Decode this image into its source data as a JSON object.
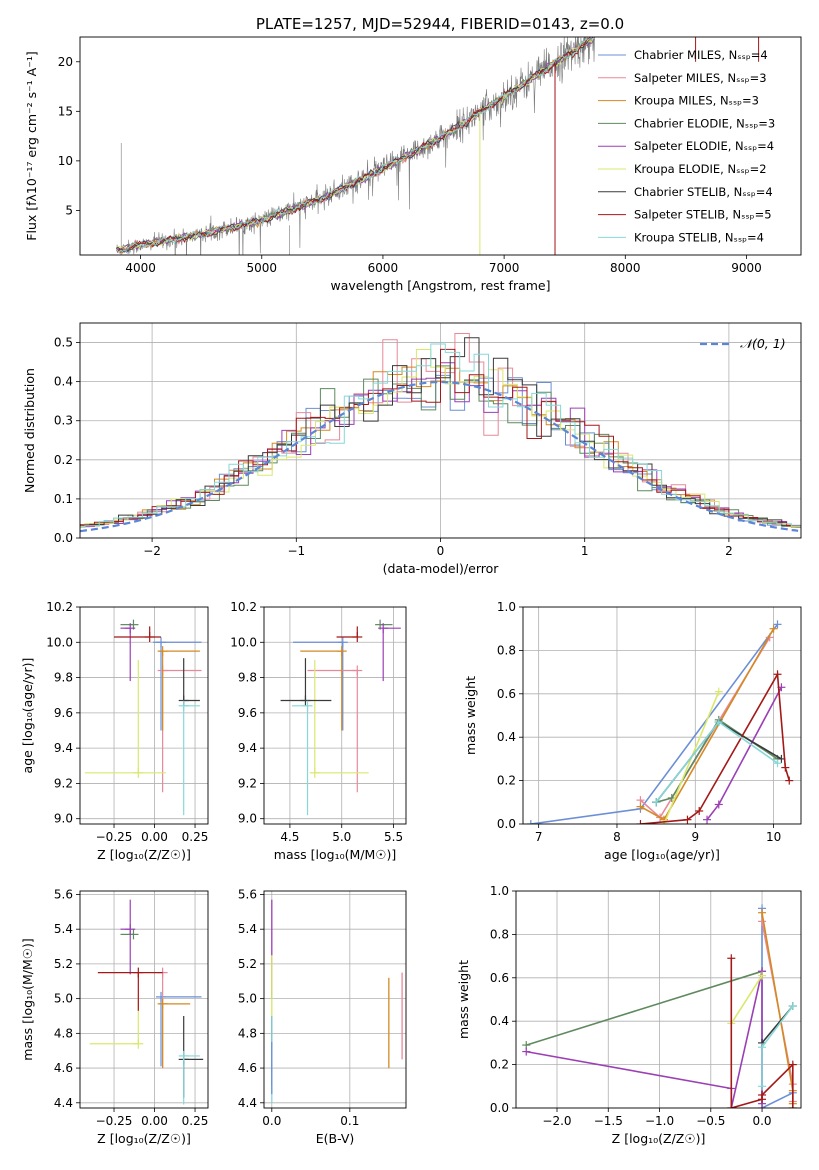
{
  "figure": {
    "title": "PLATE=1257, MJD=52944, FIBERID=0143, z=0.0"
  },
  "colors": {
    "Chabrier MILES": "#6b8fd6",
    "Salpeter MILES": "#e8899a",
    "Kroupa MILES": "#d48a22",
    "Chabrier ELODIE": "#5f8a5f",
    "Salpeter ELODIE": "#9b3fb5",
    "Kroupa ELODIE": "#d9e86b",
    "Chabrier STELIB": "#3a3a3a",
    "Salpeter STELIB": "#a51818",
    "Kroupa STELIB": "#86d8d8",
    "data": "#7a7a7a",
    "normal": "#5b86d8"
  },
  "chart_data": [
    {
      "id": "spectrum",
      "type": "line",
      "title": "PLATE=1257, MJD=52944, FIBERID=0143, z=0.0",
      "xlabel": "wavelength [Angstrom, rest frame]",
      "ylabel": "Flux [fλ10⁻¹⁷ erg cm⁻² s⁻¹ A⁻¹]",
      "xlim": [
        3500,
        9450
      ],
      "ylim": [
        0.5,
        22.5
      ],
      "xticks": [
        4000,
        5000,
        6000,
        7000,
        8000,
        9000
      ],
      "yticks": [
        5,
        10,
        15,
        20
      ],
      "legend_position": "right",
      "series": [
        {
          "name": "Chabrier MILES, Nₛₛₚ=4",
          "key": "Chabrier MILES"
        },
        {
          "name": "Salpeter MILES, Nₛₛₚ=3",
          "key": "Salpeter MILES"
        },
        {
          "name": "Kroupa MILES, Nₛₛₚ=3",
          "key": "Kroupa MILES"
        },
        {
          "name": "Chabrier ELODIE, Nₛₛₚ=3",
          "key": "Chabrier ELODIE"
        },
        {
          "name": "Salpeter ELODIE, Nₛₛₚ=4",
          "key": "Salpeter ELODIE"
        },
        {
          "name": "Kroupa ELODIE, Nₛₛₚ=2",
          "key": "Kroupa ELODIE"
        },
        {
          "name": "Chabrier STELIB, Nₛₛₚ=4",
          "key": "Chabrier STELIB"
        },
        {
          "name": "Salpeter STELIB, Nₛₛₚ=5",
          "key": "Salpeter STELIB"
        },
        {
          "name": "Kroupa STELIB, Nₛₛₚ=4",
          "key": "Kroupa STELIB"
        }
      ],
      "continuum": {
        "x": [
          3800,
          4000,
          4500,
          5000,
          5500,
          6000,
          6500,
          7000,
          7500,
          7750
        ],
        "y": [
          1.0,
          1.5,
          2.6,
          4.0,
          6.2,
          9.2,
          12.5,
          16.5,
          20.5,
          22.5
        ]
      },
      "cutoffs": [
        {
          "key": "Kroupa MILES",
          "x": 7420
        },
        {
          "key": "Salpeter STELIB",
          "x": 7420
        },
        {
          "key": "Kroupa ELODIE",
          "x": 6800
        }
      ],
      "data_range": [
        3800,
        7750
      ]
    },
    {
      "id": "residuals",
      "type": "histogram",
      "xlabel": "(data-model)/error",
      "ylabel": "Normed distribution",
      "xlim": [
        -2.5,
        2.5
      ],
      "ylim": [
        0,
        0.55
      ],
      "xticks": [
        -2,
        -1,
        0,
        1,
        2
      ],
      "yticks": [
        0.0,
        0.1,
        0.2,
        0.3,
        0.4,
        0.5
      ],
      "legend": "𝒩(0, 1)",
      "legend_position": "top-right",
      "bin_width": 0.1,
      "curve": "normal(0,1)"
    },
    {
      "id": "age_vs_Z",
      "type": "scatter",
      "xlabel": "Z [log₁₀(Z/Z☉)]",
      "ylabel": "age  [log₁₀(age/yr)]",
      "xlim": [
        -0.46,
        0.33
      ],
      "ylim": [
        8.97,
        10.2
      ],
      "xticks": [
        -0.25,
        0.0,
        0.25
      ],
      "yticks": [
        9.0,
        9.2,
        9.4,
        9.6,
        9.8,
        10.0,
        10.2
      ],
      "points": [
        {
          "key": "Chabrier MILES",
          "x": 0.04,
          "y": 10.0,
          "xerr": [
            0.05,
            0.25
          ],
          "yerr": [
            0.5,
            0.0
          ]
        },
        {
          "key": "Salpeter MILES",
          "x": 0.05,
          "y": 9.84,
          "xerr": [
            0.0,
            0.24
          ],
          "yerr": [
            0.69,
            0.0
          ]
        },
        {
          "key": "Kroupa MILES",
          "x": 0.05,
          "y": 9.95,
          "xerr": [
            0.02,
            0.23
          ],
          "yerr": [
            0.45,
            0.0
          ]
        },
        {
          "key": "Chabrier ELODIE",
          "x": -0.13,
          "y": 10.1,
          "xerr": [
            0.08,
            0.0
          ],
          "yerr": [
            0.0,
            0.0
          ]
        },
        {
          "key": "Salpeter ELODIE",
          "x": -0.15,
          "y": 10.08,
          "xerr": [
            0.06,
            0.0
          ],
          "yerr": [
            0.3,
            0.0
          ]
        },
        {
          "key": "Kroupa ELODIE",
          "x": -0.1,
          "y": 9.26,
          "xerr": [
            0.33,
            0.17
          ],
          "yerr": [
            0.0,
            0.64
          ]
        },
        {
          "key": "Chabrier STELIB",
          "x": 0.18,
          "y": 9.67,
          "xerr": [
            0.0,
            0.1
          ],
          "yerr": [
            0.0,
            0.24
          ]
        },
        {
          "key": "Salpeter STELIB",
          "x": -0.03,
          "y": 10.03,
          "xerr": [
            0.22,
            0.07
          ],
          "yerr": [
            0.0,
            0.06
          ]
        },
        {
          "key": "Kroupa STELIB",
          "x": 0.18,
          "y": 9.64,
          "xerr": [
            0.0,
            0.1
          ],
          "yerr": [
            0.62,
            0.0
          ]
        }
      ]
    },
    {
      "id": "age_vs_mass",
      "type": "scatter",
      "xlabel": "mass [log₁₀(M/M☉)]",
      "ylabel": "",
      "xlim": [
        4.25,
        5.62
      ],
      "ylim": [
        8.97,
        10.2
      ],
      "xticks": [
        4.5,
        5.0,
        5.5
      ],
      "yticks": [
        9.0,
        9.2,
        9.4,
        9.6,
        9.8,
        10.0,
        10.2
      ],
      "points": [
        {
          "key": "Chabrier MILES",
          "x": 5.01,
          "y": 10.0,
          "xerr": [
            0.48,
            0.0
          ],
          "yerr": [
            0.5,
            0.0
          ]
        },
        {
          "key": "Salpeter MILES",
          "x": 5.15,
          "y": 9.84,
          "xerr": [
            0.48,
            0.0
          ],
          "yerr": [
            0.69,
            0.0
          ]
        },
        {
          "key": "Kroupa MILES",
          "x": 5.0,
          "y": 9.95,
          "xerr": [
            0.4,
            0.0
          ],
          "yerr": [
            0.45,
            0.0
          ]
        },
        {
          "key": "Chabrier ELODIE",
          "x": 5.37,
          "y": 10.1,
          "xerr": [
            0.0,
            0.12
          ],
          "yerr": [
            0.0,
            0.0
          ]
        },
        {
          "key": "Salpeter ELODIE",
          "x": 5.4,
          "y": 10.08,
          "xerr": [
            0.0,
            0.17
          ],
          "yerr": [
            0.3,
            0.0
          ]
        },
        {
          "key": "Kroupa ELODIE",
          "x": 4.74,
          "y": 9.26,
          "xerr": [
            0.0,
            0.52
          ],
          "yerr": [
            0.0,
            0.64
          ]
        },
        {
          "key": "Chabrier STELIB",
          "x": 4.65,
          "y": 9.67,
          "xerr": [
            0.24,
            0.25
          ],
          "yerr": [
            0.0,
            0.24
          ]
        },
        {
          "key": "Salpeter STELIB",
          "x": 5.15,
          "y": 10.03,
          "xerr": [
            0.2,
            0.0
          ],
          "yerr": [
            0.0,
            0.06
          ]
        },
        {
          "key": "Kroupa STELIB",
          "x": 4.67,
          "y": 9.64,
          "xerr": [
            0.15,
            0.0
          ],
          "yerr": [
            0.62,
            0.0
          ]
        }
      ]
    },
    {
      "id": "weight_vs_age",
      "type": "line",
      "xlabel": "age  [log₁₀(age/yr)]",
      "ylabel": "mass weight",
      "xlim": [
        6.8,
        10.35
      ],
      "ylim": [
        0,
        1.0
      ],
      "xticks": [
        7,
        8,
        9,
        10
      ],
      "yticks": [
        0.0,
        0.2,
        0.4,
        0.6,
        0.8,
        1.0
      ],
      "series": [
        {
          "key": "Chabrier MILES",
          "x": [
            6.9,
            8.3,
            10.05
          ],
          "y": [
            0.0,
            0.07,
            0.92
          ]
        },
        {
          "key": "Salpeter MILES",
          "x": [
            8.3,
            8.55,
            9.95
          ],
          "y": [
            0.11,
            0.03,
            0.86
          ]
        },
        {
          "key": "Kroupa MILES",
          "x": [
            8.3,
            8.6,
            10.0
          ],
          "y": [
            0.08,
            0.02,
            0.9
          ]
        },
        {
          "key": "Chabrier ELODIE",
          "x": [
            8.5,
            8.7,
            9.3,
            10.05
          ],
          "y": [
            0.1,
            0.12,
            0.48,
            0.3
          ]
        },
        {
          "key": "Salpeter ELODIE",
          "x": [
            9.15,
            9.3,
            10.1
          ],
          "y": [
            0.02,
            0.09,
            0.63
          ]
        },
        {
          "key": "Kroupa ELODIE",
          "x": [
            8.6,
            9.3
          ],
          "y": [
            0.0,
            0.61
          ]
        },
        {
          "key": "Chabrier STELIB",
          "x": [
            8.5,
            9.3,
            10.1
          ],
          "y": [
            0.1,
            0.47,
            0.3
          ]
        },
        {
          "key": "Salpeter STELIB",
          "x": [
            8.3,
            8.9,
            9.05,
            10.05,
            10.15,
            10.2
          ],
          "y": [
            0.0,
            0.02,
            0.06,
            0.69,
            0.26,
            0.2
          ]
        },
        {
          "key": "Kroupa STELIB",
          "x": [
            8.5,
            9.3,
            10.05
          ],
          "y": [
            0.1,
            0.47,
            0.28
          ]
        }
      ]
    },
    {
      "id": "mass_vs_Z",
      "type": "scatter",
      "xlabel": "Z [log₁₀(Z/Z☉)]",
      "ylabel": "mass [log₁₀(M/M☉)]",
      "xlim": [
        -0.46,
        0.33
      ],
      "ylim": [
        4.37,
        5.62
      ],
      "xticks": [
        -0.25,
        0.0,
        0.25
      ],
      "yticks": [
        4.4,
        4.6,
        4.8,
        5.0,
        5.2,
        5.4,
        5.6
      ],
      "points": [
        {
          "key": "Chabrier MILES",
          "x": 0.04,
          "y": 5.01,
          "xerr": [
            0.0,
            0.25
          ],
          "yerr": [
            0.4,
            0.0
          ]
        },
        {
          "key": "Salpeter MILES",
          "x": 0.05,
          "y": 5.15,
          "xerr": [
            0.0,
            0.0
          ],
          "yerr": [
            0.55,
            0.0
          ]
        },
        {
          "key": "Kroupa MILES",
          "x": 0.05,
          "y": 4.97,
          "xerr": [
            0.02,
            0.17
          ],
          "yerr": [
            0.37,
            0.0
          ]
        },
        {
          "key": "Chabrier ELODIE",
          "x": -0.13,
          "y": 5.37,
          "xerr": [
            0.08,
            0.0
          ],
          "yerr": [
            0.0,
            0.0
          ]
        },
        {
          "key": "Salpeter ELODIE",
          "x": -0.15,
          "y": 5.4,
          "xerr": [
            0.06,
            0.0
          ],
          "yerr": [
            0.26,
            0.17
          ]
        },
        {
          "key": "Kroupa ELODIE",
          "x": -0.1,
          "y": 4.74,
          "xerr": [
            0.3,
            0.0
          ],
          "yerr": [
            0.0,
            0.26
          ]
        },
        {
          "key": "Chabrier STELIB",
          "x": 0.18,
          "y": 4.65,
          "xerr": [
            0.0,
            0.12
          ],
          "yerr": [
            0.22,
            0.25
          ]
        },
        {
          "key": "Salpeter STELIB",
          "x": -0.1,
          "y": 5.15,
          "xerr": [
            0.25,
            0.15
          ],
          "yerr": [
            0.22,
            0.0
          ]
        },
        {
          "key": "Kroupa STELIB",
          "x": 0.18,
          "y": 4.67,
          "xerr": [
            0.0,
            0.1
          ],
          "yerr": [
            0.28,
            0.0
          ]
        }
      ]
    },
    {
      "id": "mass_vs_ebv",
      "type": "line",
      "xlabel": "E(B-V)",
      "ylabel": "",
      "xlim": [
        -0.01,
        0.172
      ],
      "ylim": [
        4.37,
        5.62
      ],
      "xticks": [
        0.0,
        0.1
      ],
      "yticks": [
        4.4,
        4.6,
        4.8,
        5.0,
        5.2,
        5.4,
        5.6
      ],
      "segments": [
        {
          "key": "Salpeter ELODIE",
          "x": 0.0,
          "y": [
            5.0,
            5.57
          ]
        },
        {
          "key": "Kroupa ELODIE",
          "x": 0.0,
          "y": [
            4.9,
            5.25
          ]
        },
        {
          "key": "Chabrier STELIB",
          "x": 0.0,
          "y": [
            4.5,
            4.9
          ]
        },
        {
          "key": "Kroupa STELIB",
          "x": 0.0,
          "y": [
            4.4,
            4.9
          ]
        },
        {
          "key": "Chabrier MILES",
          "x": 0.0,
          "y": [
            4.45,
            4.75
          ]
        },
        {
          "key": "Kroupa MILES",
          "x": 0.15,
          "y": [
            4.6,
            5.12
          ]
        },
        {
          "key": "Salpeter MILES",
          "x": 0.167,
          "y": [
            4.65,
            5.15
          ]
        }
      ]
    },
    {
      "id": "weight_vs_Z",
      "type": "line",
      "xlabel": "Z [log₁₀(Z/Z☉)]",
      "ylabel": "mass weight",
      "xlim": [
        -2.4,
        0.38
      ],
      "ylim": [
        0,
        1.0
      ],
      "xticks": [
        -2.0,
        -1.5,
        -1.0,
        -0.5,
        0.0
      ],
      "yticks": [
        0.0,
        0.2,
        0.4,
        0.6,
        0.8,
        1.0
      ],
      "series": [
        {
          "key": "Chabrier MILES",
          "x": [
            0.0,
            0.0,
            0.3
          ],
          "y": [
            0.92,
            0.0,
            0.07
          ]
        },
        {
          "key": "Salpeter MILES",
          "x": [
            0.0,
            0.3,
            0.3
          ],
          "y": [
            0.86,
            0.11,
            0.03
          ]
        },
        {
          "key": "Kroupa MILES",
          "x": [
            0.0,
            0.3,
            0.3
          ],
          "y": [
            0.9,
            0.08,
            0.02
          ]
        },
        {
          "key": "Chabrier ELODIE",
          "x": [
            -2.3,
            0.0
          ],
          "y": [
            0.29,
            0.63
          ]
        },
        {
          "key": "Salpeter ELODIE",
          "x": [
            -2.3,
            -0.3,
            -0.3,
            0.0,
            0.0
          ],
          "y": [
            0.26,
            0.09,
            0.0,
            0.63,
            0.02
          ]
        },
        {
          "key": "Kroupa ELODIE",
          "x": [
            -0.3,
            0.0
          ],
          "y": [
            0.39,
            0.61
          ]
        },
        {
          "key": "Chabrier STELIB",
          "x": [
            0.0,
            0.3
          ],
          "y": [
            0.3,
            0.47
          ]
        },
        {
          "key": "Salpeter STELIB",
          "x": [
            -0.3,
            -0.3,
            0.0,
            0.0,
            0.3,
            0.3
          ],
          "y": [
            0.69,
            0.0,
            0.04,
            0.06,
            0.2,
            0.0
          ]
        },
        {
          "key": "Kroupa STELIB",
          "x": [
            0.0,
            0.0,
            0.3
          ],
          "y": [
            0.1,
            0.28,
            0.47
          ]
        }
      ]
    }
  ]
}
